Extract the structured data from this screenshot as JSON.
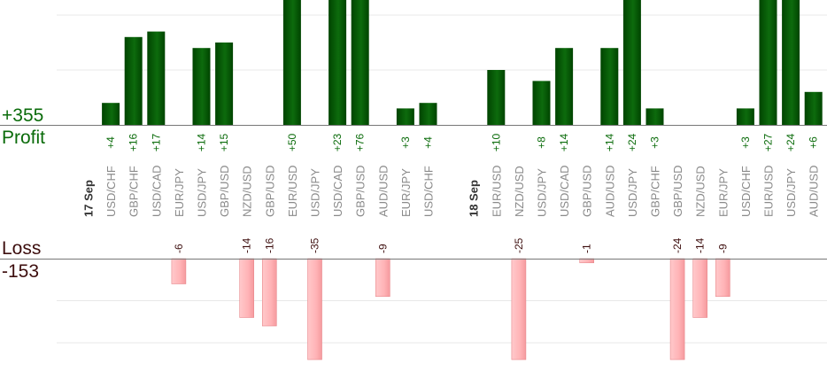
{
  "summary": {
    "profit_total": "+355",
    "profit_label": "Profit",
    "loss_label": "Loss",
    "loss_total": "-153"
  },
  "colors": {
    "profit_bar": "#0d6b0d",
    "profit_bar_dark": "#004400",
    "profit_text": "#0a6b0a",
    "loss_bar": "#ffb3b6",
    "loss_bar_border": "#e8888c",
    "loss_text": "#3d0e0e",
    "grid": "#e8e8e8",
    "axis": "#777777",
    "category_text": "#8a8a8a",
    "date_text": "#333333"
  },
  "chart_data": {
    "type": "bar",
    "slots": [
      {
        "kind": "date",
        "label": "17 Sep"
      },
      {
        "kind": "trade",
        "label": "USD/CHF",
        "value": 4,
        "value_label": "+4"
      },
      {
        "kind": "trade",
        "label": "GBP/CHF",
        "value": 16,
        "value_label": "+16"
      },
      {
        "kind": "trade",
        "label": "USD/CAD",
        "value": 17,
        "value_label": "+17"
      },
      {
        "kind": "trade",
        "label": "EUR/JPY",
        "value": -6,
        "value_label": "-6"
      },
      {
        "kind": "trade",
        "label": "USD/JPY",
        "value": 14,
        "value_label": "+14"
      },
      {
        "kind": "trade",
        "label": "GBP/USD",
        "value": 15,
        "value_label": "+15"
      },
      {
        "kind": "trade",
        "label": "NZD/USD",
        "value": -14,
        "value_label": "-14"
      },
      {
        "kind": "trade",
        "label": "GBP/USD",
        "value": -16,
        "value_label": "-16"
      },
      {
        "kind": "trade",
        "label": "EUR/USD",
        "value": 50,
        "value_label": "+50"
      },
      {
        "kind": "trade",
        "label": "USD/JPY",
        "value": -35,
        "value_label": "-35"
      },
      {
        "kind": "trade",
        "label": "USD/CAD",
        "value": 23,
        "value_label": "+23"
      },
      {
        "kind": "trade",
        "label": "GBP/USD",
        "value": 76,
        "value_label": "+76"
      },
      {
        "kind": "trade",
        "label": "AUD/USD",
        "value": -9,
        "value_label": "-9"
      },
      {
        "kind": "trade",
        "label": "EUR/JPY",
        "value": 3,
        "value_label": "+3"
      },
      {
        "kind": "trade",
        "label": "USD/CHF",
        "value": 4,
        "value_label": "+4"
      },
      {
        "kind": "gap"
      },
      {
        "kind": "date",
        "label": "18 Sep"
      },
      {
        "kind": "trade",
        "label": "EUR/USD",
        "value": 10,
        "value_label": "+10"
      },
      {
        "kind": "trade",
        "label": "NZD/USD",
        "value": -25,
        "value_label": "-25"
      },
      {
        "kind": "trade",
        "label": "USD/JPY",
        "value": 8,
        "value_label": "+8"
      },
      {
        "kind": "trade",
        "label": "USD/CAD",
        "value": 14,
        "value_label": "+14"
      },
      {
        "kind": "trade",
        "label": "GBP/USD",
        "value": -1,
        "value_label": "-1"
      },
      {
        "kind": "trade",
        "label": "AUD/USD",
        "value": 14,
        "value_label": "+14"
      },
      {
        "kind": "trade",
        "label": "USD/JPY",
        "value": 24,
        "value_label": "+24"
      },
      {
        "kind": "trade",
        "label": "GBP/CHF",
        "value": 3,
        "value_label": "+3"
      },
      {
        "kind": "trade",
        "label": "GBP/USD",
        "value": -24,
        "value_label": "-24"
      },
      {
        "kind": "trade",
        "label": "NZD/USD",
        "value": -14,
        "value_label": "-14"
      },
      {
        "kind": "trade",
        "label": "EUR/JPY",
        "value": -9,
        "value_label": "-9"
      },
      {
        "kind": "trade",
        "label": "USD/CHF",
        "value": 3,
        "value_label": "+3"
      },
      {
        "kind": "trade",
        "label": "EUR/USD",
        "value": 27,
        "value_label": "+27"
      },
      {
        "kind": "trade",
        "label": "USD/JPY",
        "value": 24,
        "value_label": "+24"
      },
      {
        "kind": "trade",
        "label": "AUD/USD",
        "value": 6,
        "value_label": "+6"
      }
    ],
    "profit_gridlines": [
      10,
      20
    ],
    "loss_gridlines": [
      -10,
      -20
    ],
    "profit_ylim": [
      0,
      23
    ],
    "loss_ylim": [
      -24,
      0
    ],
    "grid": true
  }
}
